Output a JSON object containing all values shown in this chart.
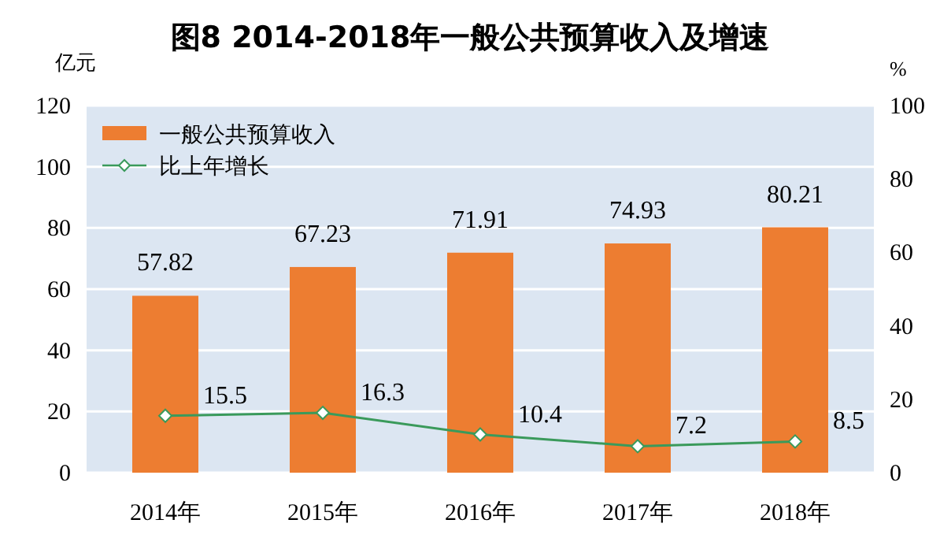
{
  "chart_data": {
    "type": "bar",
    "title": "图8  2014-2018年一般公共预算收入及增速",
    "ylabel": "亿元",
    "y2label": "%",
    "categories": [
      "2014年",
      "2015年",
      "2016年",
      "2017年",
      "2018年"
    ],
    "series": [
      {
        "name": "一般公共预算收入",
        "color": "#ed7d31",
        "values": [
          57.82,
          67.23,
          71.91,
          74.93,
          80.21
        ]
      },
      {
        "name": "比上年增长",
        "type": "line",
        "axis": "y2",
        "color": "#3a9a5b",
        "marker": "diamond",
        "values": [
          15.5,
          16.3,
          10.4,
          7.2,
          8.5
        ]
      }
    ],
    "ylim": [
      0,
      120
    ],
    "yticks": [
      0,
      20,
      40,
      60,
      80,
      100,
      120
    ],
    "y2lim": [
      0,
      100
    ],
    "y2ticks": [
      0,
      20,
      40,
      60,
      80,
      100
    ],
    "grid": "y",
    "legend": "top left",
    "data_labels": true
  }
}
